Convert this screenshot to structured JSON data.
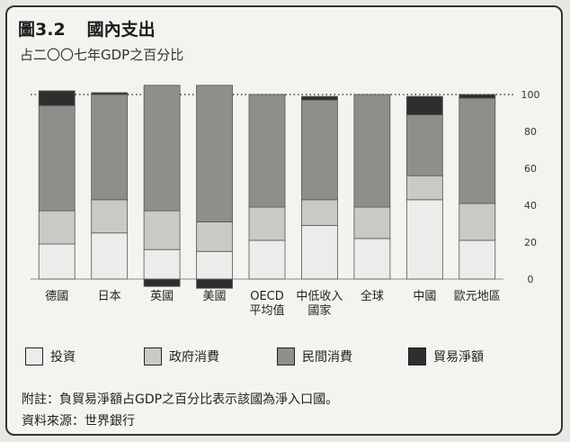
{
  "header": {
    "figure_number": "圖3.2",
    "title": "國內支出",
    "subtitle": "占二〇〇七年GDP之百分比"
  },
  "legend": [
    {
      "label": "投資",
      "color": "#ececea"
    },
    {
      "label": "政府消費",
      "color": "#c9c9c6"
    },
    {
      "label": "民間消費",
      "color": "#8e8e8b"
    },
    {
      "label": "貿易淨額",
      "color": "#2e2e2e"
    }
  ],
  "notes": {
    "footnote": "附註：負貿易淨額占GDP之百分比表示該國為淨入口國。",
    "source": "資料來源：世界銀行"
  },
  "chart_data": {
    "type": "bar",
    "stacked": true,
    "categories": [
      [
        "德國"
      ],
      [
        "日本"
      ],
      [
        "英國"
      ],
      [
        "美國"
      ],
      [
        "OECD",
        "平均值"
      ],
      [
        "中低收入",
        "國家"
      ],
      [
        "全球"
      ],
      [
        "中國"
      ],
      [
        "歐元地區"
      ]
    ],
    "series": [
      {
        "name": "投資",
        "color": "#ececea",
        "values": [
          19,
          25,
          16,
          15,
          21,
          29,
          22,
          43,
          21
        ]
      },
      {
        "name": "政府消費",
        "color": "#c9c9c6",
        "values": [
          18,
          18,
          21,
          16,
          18,
          14,
          17,
          13,
          20
        ]
      },
      {
        "name": "民間消費",
        "color": "#8e8e8b",
        "values": [
          57,
          57,
          68,
          74,
          61,
          54,
          61,
          33,
          57
        ]
      },
      {
        "name": "貿易淨額",
        "color": "#2e2e2e",
        "values": [
          8,
          1,
          -4,
          -5,
          0,
          2,
          0,
          10,
          2
        ]
      }
    ],
    "y_ticks": [
      0,
      20,
      40,
      60,
      80,
      100
    ],
    "ylim": [
      -6,
      110
    ],
    "grid": "dotted at 100"
  }
}
